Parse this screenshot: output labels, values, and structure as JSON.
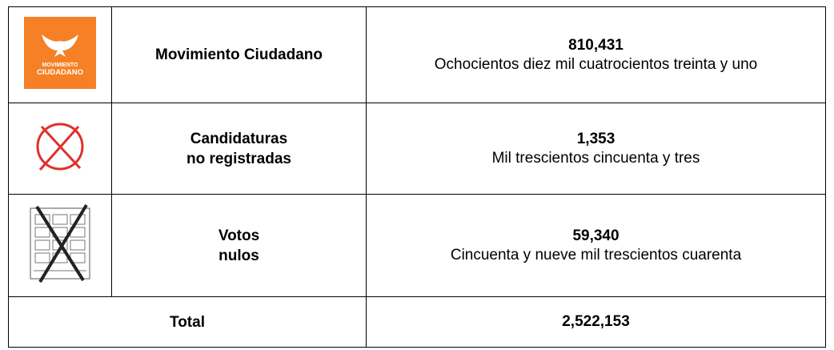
{
  "logo": {
    "line1": "MOVIMIENTO",
    "line2": "CIUDADANO"
  },
  "table": {
    "rows": [
      {
        "name": "Movimiento Ciudadano",
        "number": "810,431",
        "words": "Ochocientos diez mil cuatrocientos treinta y uno"
      },
      {
        "name": "Candidaturas\nno registradas",
        "number": "1,353",
        "words": "Mil trescientos cincuenta y tres"
      },
      {
        "name": "Votos\nnulos",
        "number": "59,340",
        "words": "Cincuenta y nueve mil trescientos cuarenta"
      }
    ],
    "total": {
      "label": "Total",
      "number": "2,522,153"
    }
  }
}
